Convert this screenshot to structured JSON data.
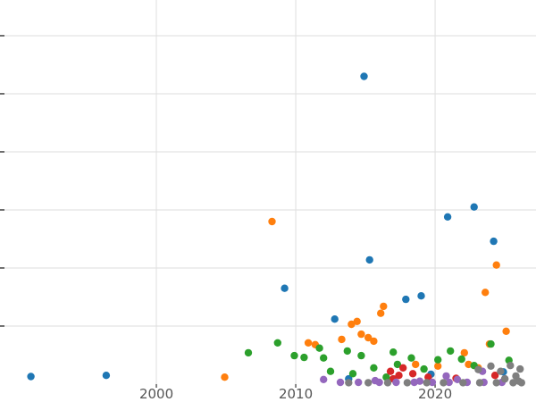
{
  "figure": {
    "background": "#ffffff",
    "grid_color": "#dedede",
    "tick_color": "#333333",
    "label_color": "#555555",
    "x_tick_labels": [
      "2000",
      "2010",
      "2020"
    ]
  },
  "chart_data": {
    "type": "scatter",
    "title": "",
    "xlabel": "",
    "ylabel": "",
    "grid": true,
    "legend": "none",
    "xlim": [
      1988.78,
      2027.24
    ],
    "ylim": [
      -3.08,
      66.15
    ],
    "x_ticks": [
      2000,
      2010,
      2020
    ],
    "y_gridline_values": [
      10,
      20,
      30,
      40,
      50,
      60
    ],
    "axis_baseline_y": 0,
    "point_radius": 4.2,
    "series": [
      {
        "name": "blue",
        "color": "#1f77b4",
        "points": [
          [
            1991.0,
            1.3
          ],
          [
            1996.4,
            1.5
          ],
          [
            2009.2,
            16.5
          ],
          [
            2012.8,
            11.2
          ],
          [
            2014.9,
            53.0
          ],
          [
            2015.3,
            21.4
          ],
          [
            2017.9,
            14.6
          ],
          [
            2019.0,
            15.2
          ],
          [
            2020.9,
            28.8
          ],
          [
            2022.8,
            30.5
          ],
          [
            2024.2,
            24.6
          ],
          [
            2013.8,
            0.9
          ],
          [
            2019.7,
            1.7
          ],
          [
            2024.9,
            2.1
          ]
        ]
      },
      {
        "name": "orange",
        "color": "#ff7f0e",
        "points": [
          [
            2004.9,
            1.2
          ],
          [
            2008.3,
            28.0
          ],
          [
            2010.9,
            7.1
          ],
          [
            2011.4,
            6.8
          ],
          [
            2013.3,
            7.7
          ],
          [
            2014.0,
            10.3
          ],
          [
            2014.4,
            10.8
          ],
          [
            2014.7,
            8.6
          ],
          [
            2015.2,
            8.0
          ],
          [
            2015.6,
            7.4
          ],
          [
            2016.1,
            12.2
          ],
          [
            2016.3,
            13.4
          ],
          [
            2018.6,
            3.4
          ],
          [
            2020.2,
            3.1
          ],
          [
            2022.1,
            5.4
          ],
          [
            2022.4,
            3.4
          ],
          [
            2023.1,
            2.8
          ],
          [
            2023.6,
            15.8
          ],
          [
            2023.9,
            6.9
          ],
          [
            2024.4,
            20.5
          ],
          [
            2025.1,
            9.1
          ]
        ]
      },
      {
        "name": "green",
        "color": "#2ca02c",
        "points": [
          [
            2006.6,
            5.4
          ],
          [
            2008.7,
            7.1
          ],
          [
            2009.9,
            4.9
          ],
          [
            2010.6,
            4.6
          ],
          [
            2011.7,
            6.2
          ],
          [
            2012.0,
            4.5
          ],
          [
            2012.5,
            2.2
          ],
          [
            2013.7,
            5.7
          ],
          [
            2014.1,
            1.8
          ],
          [
            2014.7,
            4.9
          ],
          [
            2015.6,
            2.8
          ],
          [
            2016.5,
            1.2
          ],
          [
            2017.0,
            5.5
          ],
          [
            2017.3,
            3.4
          ],
          [
            2018.3,
            4.5
          ],
          [
            2019.2,
            2.6
          ],
          [
            2020.2,
            4.2
          ],
          [
            2021.1,
            5.7
          ],
          [
            2021.9,
            4.3
          ],
          [
            2022.8,
            3.2
          ],
          [
            2024.0,
            6.9
          ],
          [
            2025.3,
            4.1
          ]
        ]
      },
      {
        "name": "red",
        "color": "#d62728",
        "points": [
          [
            2016.8,
            2.2
          ],
          [
            2017.0,
            0.9
          ],
          [
            2017.4,
            1.5
          ],
          [
            2017.7,
            2.8
          ],
          [
            2018.4,
            1.8
          ],
          [
            2019.5,
            1.2
          ],
          [
            2021.5,
            1.0
          ],
          [
            2024.3,
            1.5
          ]
        ]
      },
      {
        "name": "purple",
        "color": "#9467bd",
        "points": [
          [
            2012.0,
            0.8
          ],
          [
            2013.2,
            0.3
          ],
          [
            2014.5,
            0.3
          ],
          [
            2015.7,
            0.6
          ],
          [
            2016.0,
            0.3
          ],
          [
            2017.2,
            0.3
          ],
          [
            2018.5,
            0.3
          ],
          [
            2018.9,
            0.5
          ],
          [
            2019.8,
            0.3
          ],
          [
            2020.8,
            1.4
          ],
          [
            2021.0,
            0.3
          ],
          [
            2021.6,
            0.8
          ],
          [
            2022.3,
            0.3
          ],
          [
            2023.4,
            2.2
          ],
          [
            2023.5,
            0.3
          ],
          [
            2024.8,
            0.3
          ],
          [
            2025.0,
            0.9
          ]
        ]
      },
      {
        "name": "gray",
        "color": "#7f7f7f",
        "points": [
          [
            2013.8,
            0.25
          ],
          [
            2015.2,
            0.25
          ],
          [
            2016.6,
            0.25
          ],
          [
            2018.0,
            0.25
          ],
          [
            2019.4,
            0.25
          ],
          [
            2020.6,
            0.25
          ],
          [
            2022.0,
            0.25
          ],
          [
            2023.1,
            2.5
          ],
          [
            2023.2,
            0.25
          ],
          [
            2024.0,
            3.1
          ],
          [
            2024.4,
            0.25
          ],
          [
            2024.7,
            2.2
          ],
          [
            2025.0,
            0.9
          ],
          [
            2025.4,
            3.2
          ],
          [
            2025.6,
            0.25
          ],
          [
            2025.8,
            1.4
          ],
          [
            2026.0,
            0.5
          ],
          [
            2026.1,
            2.6
          ],
          [
            2026.2,
            0.25
          ]
        ]
      }
    ]
  }
}
